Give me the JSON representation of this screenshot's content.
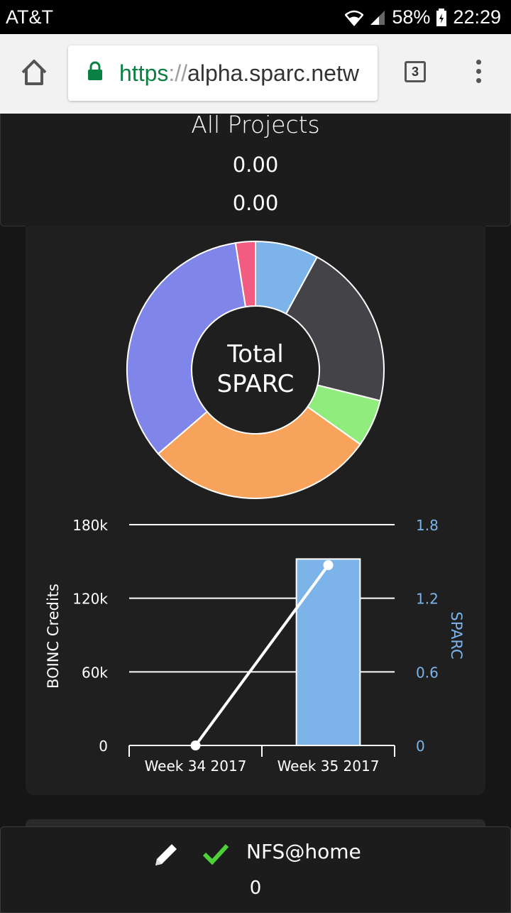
{
  "status_bar": {
    "carrier": "AT&T",
    "battery": "58%",
    "time": "22:29"
  },
  "browser": {
    "url_scheme": "https",
    "url_sep": "://",
    "url_host": "alpha.sparc.netw",
    "tab_count": "3",
    "icons": [
      "home-icon",
      "lock-icon",
      "tabs-icon",
      "more-vert-icon"
    ]
  },
  "summary": {
    "title": "All Projects",
    "value_1": "0.00",
    "value_2": "0.00"
  },
  "donut": {
    "center_line_1": "Total",
    "center_line_2": "SPARC",
    "slices": [
      {
        "value": 8,
        "color": "#7cb4ea"
      },
      {
        "value": 21,
        "color": "#434348"
      },
      {
        "value": 6,
        "color": "#90ed7d"
      },
      {
        "value": 29,
        "color": "#f7a35c"
      },
      {
        "value": 34,
        "color": "#8085e9"
      },
      {
        "value": 2.5,
        "color": "#f15c80"
      }
    ]
  },
  "chart_data": {
    "type": "bar",
    "categories": [
      "Week 34 2017",
      "Week 35 2017"
    ],
    "series": [
      {
        "type": "bar",
        "axis": "left",
        "values": [
          0,
          152000
        ],
        "color": "#7cb4ea"
      },
      {
        "type": "line",
        "axis": "right",
        "values": [
          0,
          1.47
        ],
        "color": "#ffffff"
      }
    ],
    "ylabel": "BOINC Credits",
    "ylabel_right": "SPARC",
    "ylim": [
      0,
      180000
    ],
    "ylim_right": [
      0,
      1.8
    ],
    "yticks": [
      "0",
      "60k",
      "120k",
      "180k"
    ],
    "yticks_right": [
      "0",
      "0.6",
      "1.2",
      "1.8"
    ],
    "ytick_values": [
      0,
      60000,
      120000,
      180000
    ],
    "grid": true
  },
  "project": {
    "name": "NFS@home",
    "value": "0",
    "check_color": "#4cd137"
  }
}
